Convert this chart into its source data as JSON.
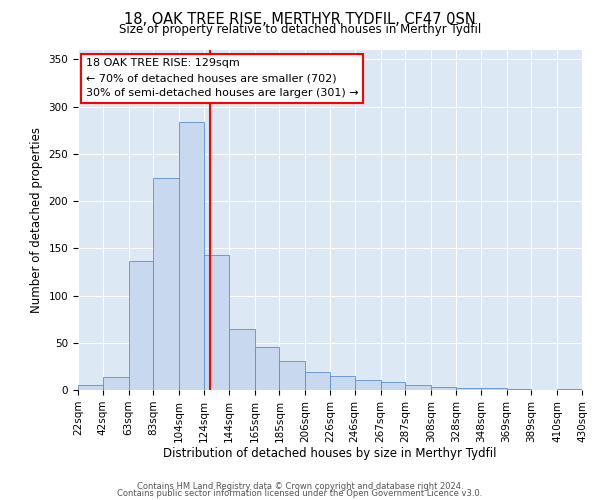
{
  "title": "18, OAK TREE RISE, MERTHYR TYDFIL, CF47 0SN",
  "subtitle": "Size of property relative to detached houses in Merthyr Tydfil",
  "xlabel": "Distribution of detached houses by size in Merthyr Tydfil",
  "ylabel": "Number of detached properties",
  "bar_color": "#c8d8ee",
  "bar_edge_color": "#5b8fc9",
  "bg_color": "#dde8f5",
  "vline_x": 129,
  "vline_color": "red",
  "annotation_lines": [
    "18 OAK TREE RISE: 129sqm",
    "← 70% of detached houses are smaller (702)",
    "30% of semi-detached houses are larger (301) →"
  ],
  "footer_line1": "Contains HM Land Registry data © Crown copyright and database right 2024.",
  "footer_line2": "Contains public sector information licensed under the Open Government Licence v3.0.",
  "bin_edges": [
    22,
    42,
    63,
    83,
    104,
    124,
    144,
    165,
    185,
    206,
    226,
    246,
    267,
    287,
    308,
    328,
    348,
    369,
    389,
    410,
    430
  ],
  "bar_heights": [
    5,
    14,
    137,
    224,
    284,
    143,
    65,
    46,
    31,
    19,
    15,
    11,
    8,
    5,
    3,
    2,
    2,
    1,
    0,
    1
  ],
  "ylim": [
    0,
    360
  ],
  "yticks": [
    0,
    50,
    100,
    150,
    200,
    250,
    300,
    350
  ],
  "title_fontsize": 10.5,
  "subtitle_fontsize": 8.5,
  "xlabel_fontsize": 8.5,
  "ylabel_fontsize": 8.5,
  "tick_fontsize": 7.5,
  "annot_fontsize": 8.0,
  "footer_fontsize": 6.0
}
